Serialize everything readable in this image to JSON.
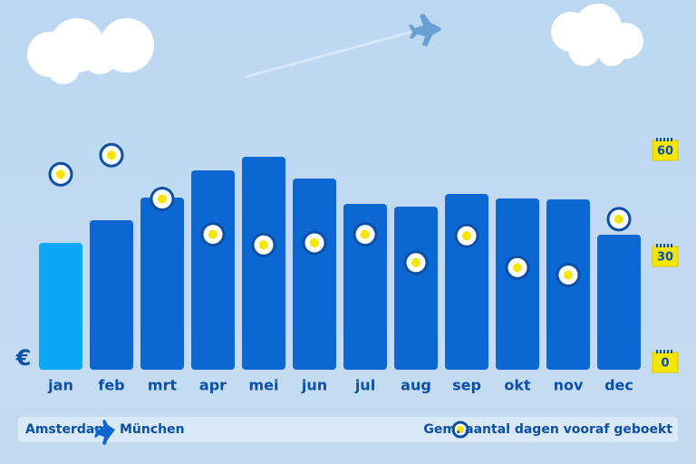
{
  "chart_data": {
    "type": "bar",
    "y_label": "€",
    "categories": [
      "jan",
      "feb",
      "mrt",
      "apr",
      "mei",
      "jun",
      "jul",
      "aug",
      "sep",
      "okt",
      "nov",
      "dec"
    ],
    "ylim": [
      0,
      100
    ],
    "y2lim": [
      0,
      60
    ],
    "y2ticks": [
      0,
      30,
      60
    ],
    "route": {
      "from": "Amsterdam",
      "to": "München"
    },
    "series": [
      {
        "name": "prijs",
        "colors": [
          "#0aa8f5",
          "#0b68d2",
          "#0b68d2",
          "#0b68d2",
          "#0b68d2",
          "#0b68d2",
          "#0b68d2",
          "#0b68d2",
          "#0b68d2",
          "#0b68d2",
          "#0b68d2",
          "#0b68d2"
        ],
        "values": [
          56,
          66,
          76,
          88,
          94,
          84.4,
          73.2,
          72,
          77.6,
          75.6,
          75.2,
          59.6
        ]
      },
      {
        "name": "Gem. aantal dagen vooraf geboekt",
        "color": "#f5e600",
        "axis": "y2",
        "values": [
          53,
          58.4,
          46,
          36,
          33,
          33.6,
          36,
          28,
          35.6,
          26.6,
          24.5,
          40.3
        ]
      }
    ]
  }
}
